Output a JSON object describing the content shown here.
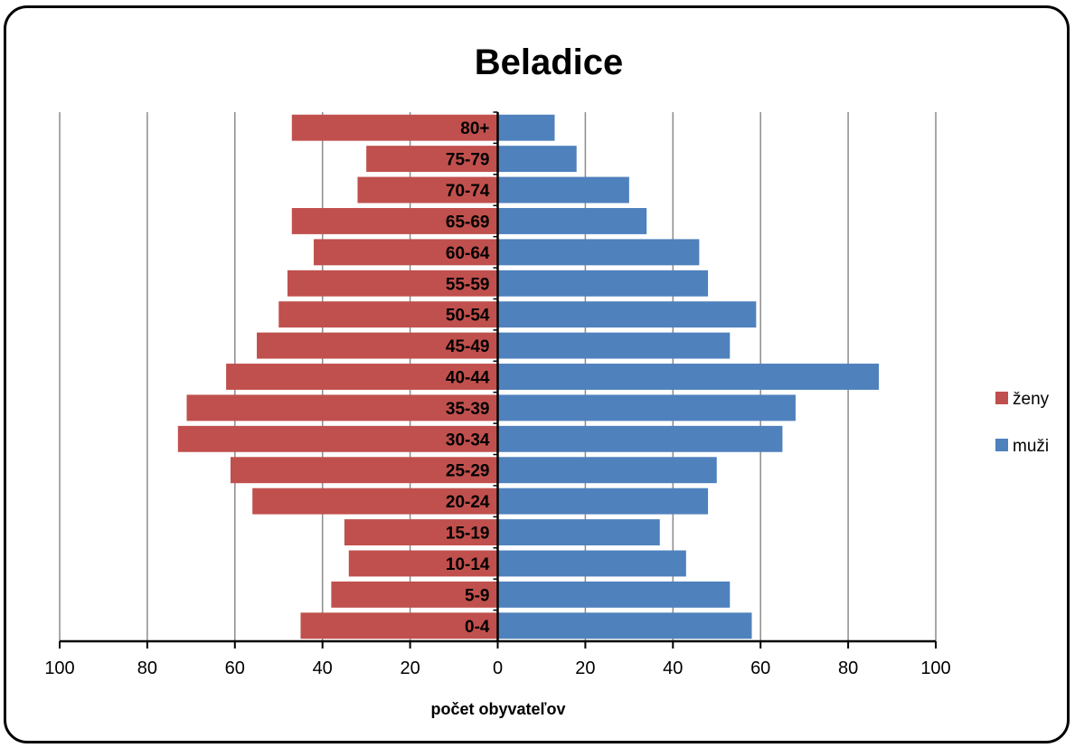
{
  "chart_data": {
    "type": "bar",
    "orientation": "horizontal-pyramid",
    "title": "Beladice",
    "xlabel": "počet obyvateľov",
    "xlim": [
      -100,
      100
    ],
    "xticks": [
      -100,
      -80,
      -60,
      -40,
      -20,
      0,
      20,
      40,
      60,
      80,
      100
    ],
    "xtick_labels": [
      "100",
      "80",
      "60",
      "40",
      "20",
      "0",
      "20",
      "40",
      "60",
      "80",
      "100"
    ],
    "grid": true,
    "legend_position": "right",
    "categories": [
      "0-4",
      "5-9",
      "10-14",
      "15-19",
      "20-24",
      "25-29",
      "30-34",
      "35-39",
      "40-44",
      "45-49",
      "50-54",
      "55-59",
      "60-64",
      "65-69",
      "70-74",
      "75-79",
      "80+"
    ],
    "series": [
      {
        "name": "ženy",
        "color": "#c0504d",
        "side": "left",
        "values": [
          45,
          38,
          34,
          35,
          56,
          61,
          73,
          71,
          62,
          55,
          50,
          48,
          42,
          47,
          32,
          30,
          47
        ]
      },
      {
        "name": "muži",
        "color": "#4f81bd",
        "side": "right",
        "values": [
          58,
          53,
          43,
          37,
          48,
          50,
          65,
          68,
          87,
          53,
          59,
          48,
          46,
          34,
          30,
          18,
          13
        ]
      }
    ]
  }
}
